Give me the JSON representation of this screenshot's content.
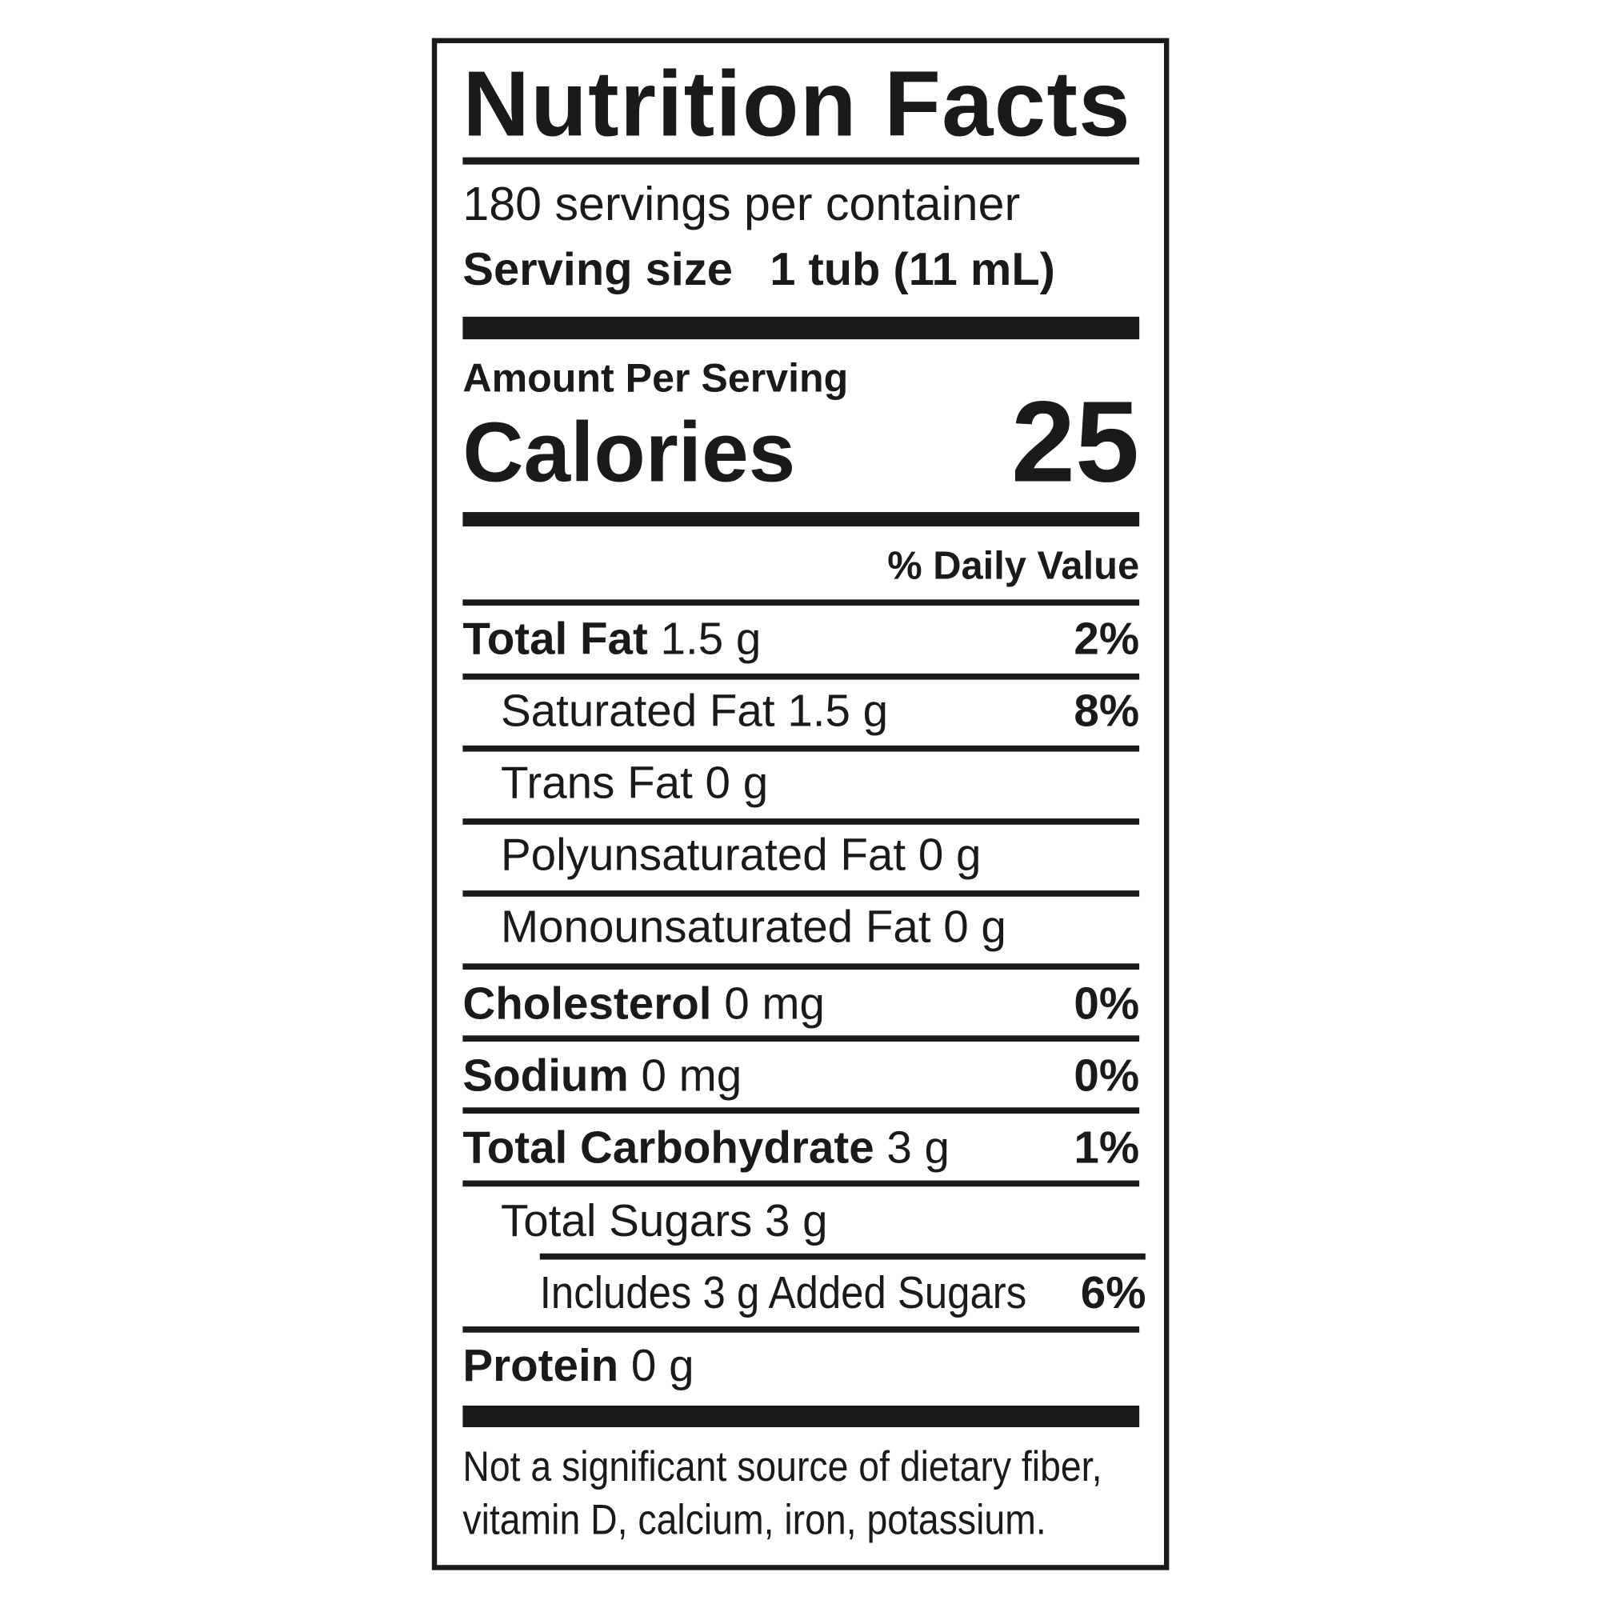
{
  "title": "Nutrition Facts",
  "servings_per_container": "180 servings per container",
  "serving_size": {
    "label": "Serving size",
    "value": "1 tub (11 mL)"
  },
  "amount_per_serving": "Amount Per Serving",
  "calories": {
    "label": "Calories",
    "value": "25"
  },
  "daily_value_header": "% Daily Value",
  "nutrients": [
    {
      "name": "Total Fat",
      "amount": "1.5 g",
      "dv": "2%"
    },
    {
      "name": "Saturated Fat",
      "amount": "1.5 g",
      "dv": "8%"
    },
    {
      "name": "Trans Fat",
      "amount": "0 g",
      "dv": ""
    },
    {
      "name": "Polyunsaturated Fat",
      "amount": "0 g",
      "dv": ""
    },
    {
      "name": "Monounsaturated Fat",
      "amount": "0 g",
      "dv": ""
    },
    {
      "name": "Cholesterol",
      "amount": "0 mg",
      "dv": "0%"
    },
    {
      "name": "Sodium",
      "amount": "0 mg",
      "dv": "0%"
    },
    {
      "name": "Total Carbohydrate",
      "amount": "3 g",
      "dv": "1%"
    },
    {
      "name": "Total Sugars",
      "amount": "3 g",
      "dv": ""
    },
    {
      "name": "Includes 3 g Added Sugars",
      "amount": "",
      "dv": "6%"
    },
    {
      "name": "Protein",
      "amount": "0 g",
      "dv": ""
    }
  ],
  "footnote": "Not a significant source of dietary fiber, vitamin D, calcium, iron, potassium."
}
